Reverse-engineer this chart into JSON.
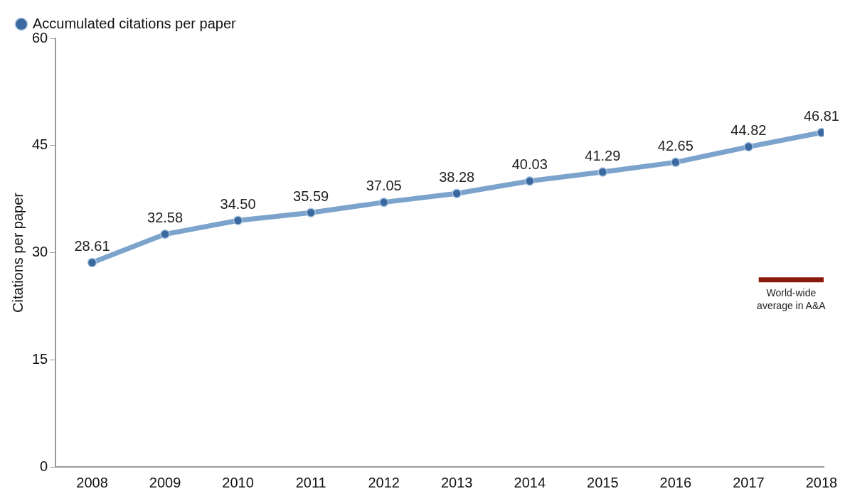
{
  "chart_data": {
    "type": "line",
    "ylabel": "Citations per paper",
    "x": [
      2008,
      2009,
      2010,
      2011,
      2012,
      2013,
      2014,
      2015,
      2016,
      2017,
      2018
    ],
    "xlim": [
      2007.5,
      2018.03
    ],
    "xticks": [
      2008,
      2009,
      2010,
      2011,
      2012,
      2013,
      2014,
      2015,
      2016,
      2017,
      2018
    ],
    "ylim": [
      0,
      60
    ],
    "yticks": [
      0,
      15,
      30,
      45,
      60
    ],
    "grid": false,
    "legend": "top left",
    "marker": "circle",
    "line_style": "solid",
    "series": [
      {
        "name": "Accumulated citations per paper",
        "color": "#7ba3cc",
        "value_labels": [
          "28.61",
          "32.58",
          "34.50",
          "35.59",
          "37.05",
          "38.28",
          "40.03",
          "41.29",
          "42.65",
          "44.82",
          "46.81"
        ],
        "values": [
          28.61,
          32.58,
          34.5,
          35.59,
          37.05,
          38.28,
          40.03,
          41.29,
          42.65,
          44.82,
          46.81
        ]
      },
      {
        "name": "World-wide average in A&A",
        "color": "#8b1a0e",
        "x": [
          2017.14,
          2018.03
        ],
        "values": [
          26.2,
          26.2
        ],
        "marker": "none"
      }
    ]
  }
}
